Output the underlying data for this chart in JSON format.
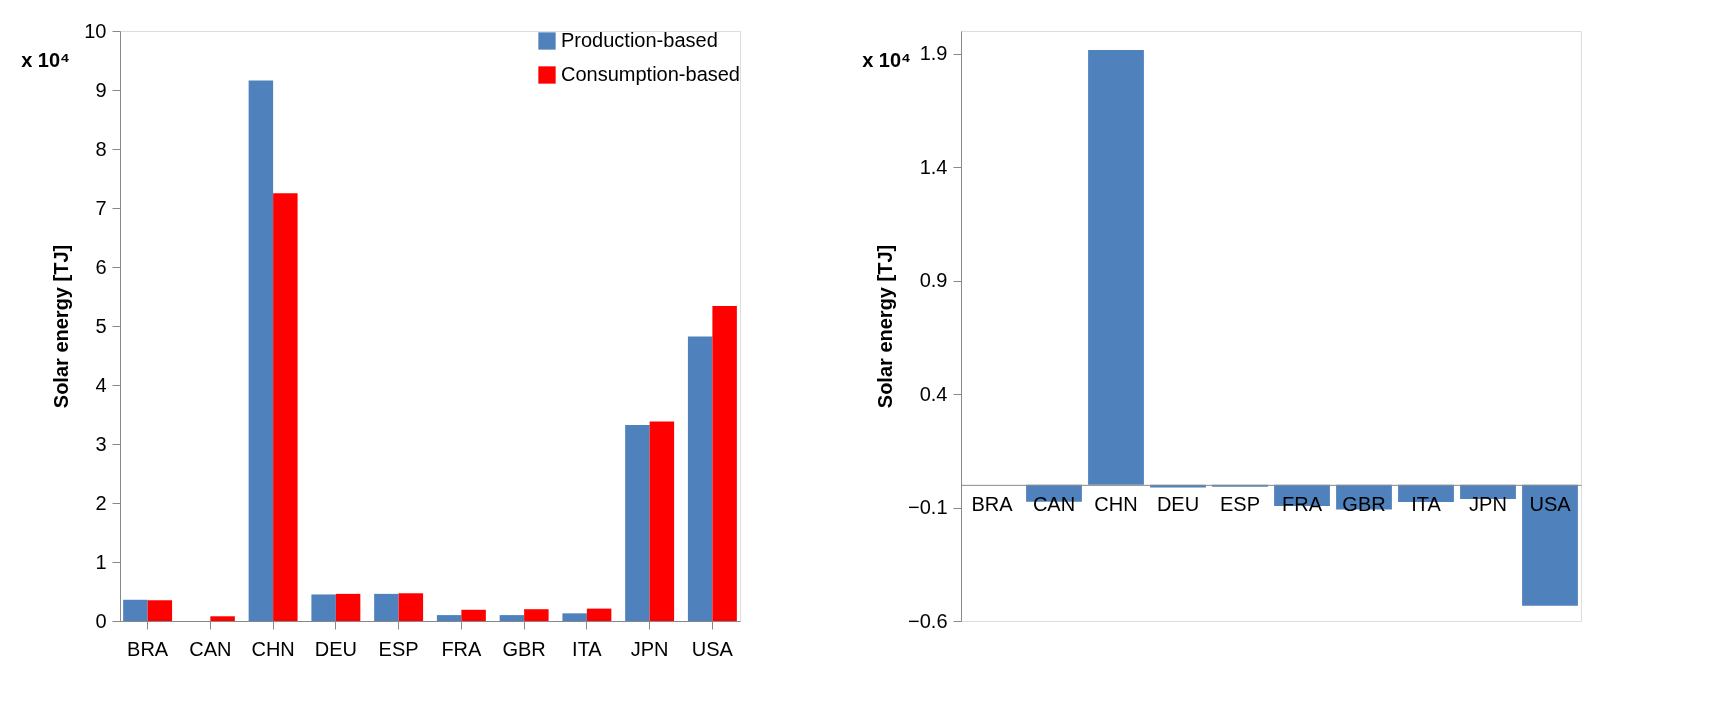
{
  "chart_data": [
    {
      "type": "bar",
      "categories": [
        "BRA",
        "CAN",
        "CHN",
        "DEU",
        "ESP",
        "FRA",
        "GBR",
        "ITA",
        "JPN",
        "USA"
      ],
      "ylabel": "Solar energy [TJ]",
      "annotations": [
        "x 10⁴"
      ],
      "ylim": [
        0,
        10
      ],
      "yticks": [
        0,
        1,
        2,
        3,
        4,
        5,
        6,
        7,
        8,
        9,
        10
      ],
      "legend": "top right",
      "grid": false,
      "series": [
        {
          "name": "Production-based",
          "color": "#4f81bd",
          "values": [
            0.36,
            0.0,
            9.16,
            0.45,
            0.46,
            0.1,
            0.1,
            0.13,
            3.32,
            4.82
          ]
        },
        {
          "name": "Consumption-based",
          "color": "#ff0000",
          "values": [
            0.35,
            0.08,
            7.25,
            0.46,
            0.47,
            0.19,
            0.2,
            0.21,
            3.38,
            5.34
          ]
        }
      ]
    },
    {
      "type": "bar",
      "categories": [
        "BRA",
        "CAN",
        "CHN",
        "DEU",
        "ESP",
        "FRA",
        "GBR",
        "ITA",
        "JPN",
        "USA"
      ],
      "ylabel": "Solar energy [TJ]",
      "annotations": [
        "x 10⁴"
      ],
      "ylim": [
        -0.6,
        2.0
      ],
      "yticks": [
        -0.6,
        -0.1,
        0.4,
        0.9,
        1.4,
        1.9
      ],
      "grid": false,
      "series": [
        {
          "color": "#4f81bd",
          "values": [
            null,
            -0.074,
            1.916,
            -0.012,
            -0.008,
            -0.093,
            -0.109,
            -0.076,
            -0.062,
            -0.533
          ]
        }
      ]
    }
  ]
}
